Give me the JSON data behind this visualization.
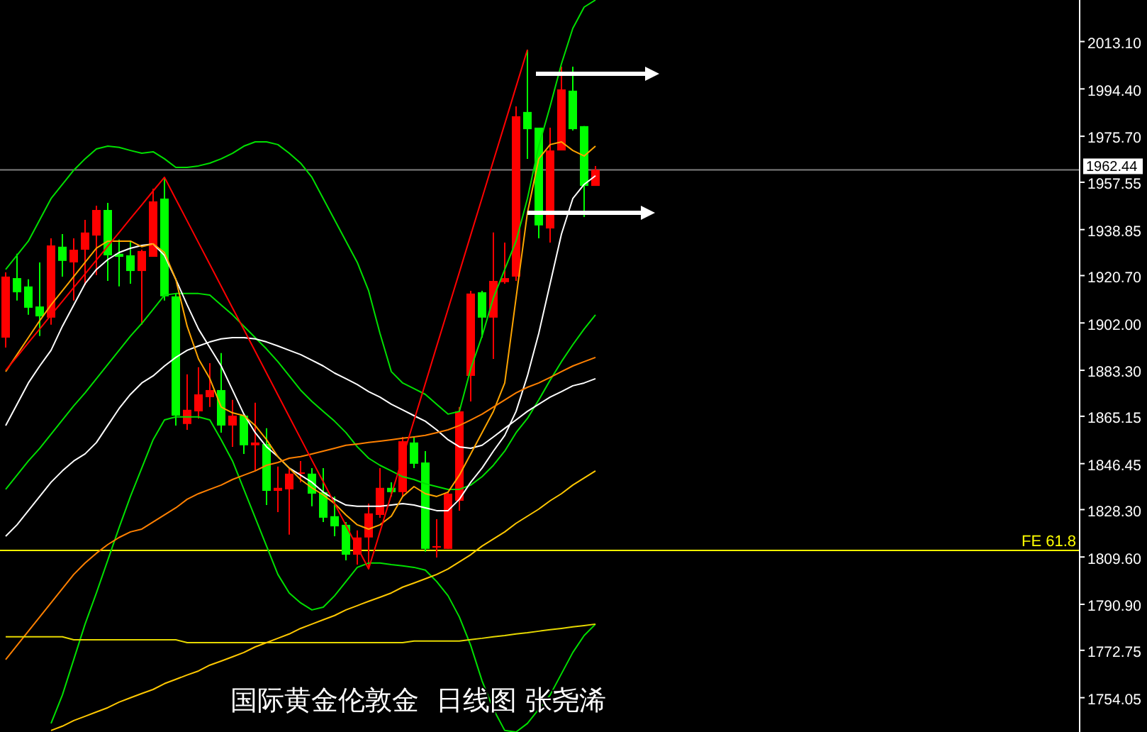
{
  "chart_data": {
    "type": "candlestick",
    "title": "国际黄金伦敦金  日线图 张尧浠",
    "categories": [
      null,
      null,
      null,
      null,
      null,
      null,
      null,
      null,
      null,
      null,
      null,
      null,
      null,
      null,
      null,
      null,
      null,
      null,
      null,
      null,
      null,
      null,
      null,
      null,
      null,
      null,
      null,
      null,
      null,
      null,
      null,
      null,
      null,
      null,
      null,
      null,
      null,
      null,
      null,
      null,
      null,
      null,
      null,
      null,
      null,
      null,
      null,
      null,
      null,
      null,
      null,
      null,
      null
    ],
    "ohlc": [
      [
        1896.2,
        1922.0,
        1892.3,
        1920.3
      ],
      [
        1919.7,
        1929.3,
        1910.8,
        1914.1
      ],
      [
        1916.4,
        1919.2,
        1905.2,
        1908.0
      ],
      [
        1908.5,
        1925.9,
        1896.8,
        1904.6
      ],
      [
        1904.1,
        1935.4,
        1901.3,
        1932.6
      ],
      [
        1932.1,
        1937.1,
        1920.3,
        1926.5
      ],
      [
        1925.9,
        1935.4,
        1910.8,
        1930.9
      ],
      [
        1930.9,
        1942.7,
        1916.9,
        1937.7
      ],
      [
        1936.5,
        1948.3,
        1920.9,
        1946.6
      ],
      [
        1946.6,
        1949.4,
        1918.6,
        1928.7
      ],
      [
        1929.3,
        1934.9,
        1916.4,
        1928.1
      ],
      [
        1928.7,
        1934.3,
        1917.5,
        1922.5
      ],
      [
        1922.5,
        1930.9,
        1901.3,
        1930.4
      ],
      [
        1928.1,
        1955.0,
        1928.1,
        1950.0
      ],
      [
        1951.1,
        1959.5,
        1910.8,
        1912.5
      ],
      [
        1912.5,
        1913.6,
        1861.5,
        1865.4
      ],
      [
        1862.1,
        1881.7,
        1859.8,
        1867.7
      ],
      [
        1867.1,
        1884.5,
        1864.3,
        1873.8
      ],
      [
        1872.7,
        1886.1,
        1868.8,
        1875.5
      ],
      [
        1875.5,
        1890.1,
        1858.7,
        1861.5
      ],
      [
        1861.5,
        1871.6,
        1853.1,
        1865.4
      ],
      [
        1865.4,
        1865.4,
        1850.3,
        1853.7
      ],
      [
        1853.7,
        1870.5,
        1843.6,
        1854.8
      ],
      [
        1854.2,
        1860.4,
        1830.1,
        1835.7
      ],
      [
        1835.7,
        1845.3,
        1827.3,
        1836.9
      ],
      [
        1836.3,
        1844.7,
        1818.4,
        1842.5
      ],
      [
        1842.5,
        1847.5,
        1839.1,
        1843.0
      ],
      [
        1842.5,
        1844.7,
        1829.6,
        1834.6
      ],
      [
        1835.2,
        1844.7,
        1823.4,
        1825.1
      ],
      [
        1825.7,
        1833.5,
        1817.8,
        1821.7
      ],
      [
        1822.3,
        1823.4,
        1808.3,
        1810.5
      ],
      [
        1810.5,
        1820.1,
        1806.6,
        1817.3
      ],
      [
        1817.3,
        1830.7,
        1804.9,
        1826.8
      ],
      [
        1826.2,
        1844.7,
        1825.1,
        1836.9
      ],
      [
        1836.9,
        1839.1,
        1833.5,
        1835.2
      ],
      [
        1835.2,
        1857.0,
        1833.5,
        1855.3
      ],
      [
        1854.8,
        1857.0,
        1844.7,
        1846.4
      ],
      [
        1846.9,
        1851.4,
        1811.7,
        1812.8
      ],
      [
        1813.3,
        1824.5,
        1809.4,
        1813.9
      ],
      [
        1812.8,
        1835.2,
        1812.8,
        1834.6
      ],
      [
        1831.8,
        1868.8,
        1827.9,
        1867.1
      ],
      [
        1881.1,
        1914.7,
        1871.0,
        1913.6
      ],
      [
        1914.1,
        1914.7,
        1896.2,
        1904.1
      ],
      [
        1904.1,
        1937.7,
        1887.8,
        1918.6
      ],
      [
        1918.1,
        1933.7,
        1917.5,
        1919.7
      ],
      [
        1920.3,
        1987.5,
        1918.6,
        1983.6
      ],
      [
        1985.3,
        2009.9,
        1966.8,
        1978.5
      ],
      [
        1979.1,
        1979.1,
        1935.4,
        1940.5
      ],
      [
        1939.3,
        1979.1,
        1933.7,
        1970.1
      ],
      [
        1970.1,
        2003.2,
        1970.1,
        1994.2
      ],
      [
        1993.7,
        2003.2,
        1978.0,
        1978.5
      ],
      [
        1979.7,
        1979.7,
        1943.8,
        1956.1
      ],
      [
        1956.1,
        1964.0,
        1956.1,
        1962.44
      ]
    ],
    "colors": [
      "#ff0000",
      "#00ff00",
      "#00ff00",
      "#00ff00",
      "#ff0000",
      "#00ff00",
      "#ff0000",
      "#ff0000",
      "#ff0000",
      "#00ff00",
      "#00ff00",
      "#00ff00",
      "#ff0000",
      "#ff0000",
      "#00ff00",
      "#00ff00",
      "#ff0000",
      "#ff0000",
      "#ff0000",
      "#00ff00",
      "#ff0000",
      "#00ff00",
      "#ff0000",
      "#00ff00",
      "#ff0000",
      "#ff0000",
      "#ff0000",
      "#00ff00",
      "#00ff00",
      "#00ff00",
      "#00ff00",
      "#ff0000",
      "#ff0000",
      "#ff0000",
      "#00ff00",
      "#ff0000",
      "#00ff00",
      "#00ff00",
      "#ff0000",
      "#ff0000",
      "#ff0000",
      "#ff0000",
      "#00ff00",
      "#ff0000",
      "#ff0000",
      "#ff0000",
      "#00ff00",
      "#00ff00",
      "#ff0000",
      "#ff0000",
      "#00ff00",
      "#00ff00",
      "#ff0000"
    ],
    "series": [
      {
        "type": "line",
        "color": "#00e000",
        "values": [
          1923.1,
          1928.7,
          1934.3,
          1942.7,
          1951.1,
          1956.7,
          1962.3,
          1966.8,
          1970.7,
          1971.8,
          1971.3,
          1970.1,
          1969.0,
          1969.6,
          1966.8,
          1963.4,
          1963.4,
          1964.0,
          1965.1,
          1966.8,
          1969.0,
          1971.8,
          1973.5,
          1973.5,
          1972.4,
          1969.0,
          1965.1,
          1959.5,
          1951.1,
          1942.7,
          1934.3,
          1925.9,
          1914.7,
          1897.9,
          1882.8,
          1878.3,
          1876.1,
          1873.8,
          1869.9,
          1866.0,
          1867.1,
          1883.9,
          1896.8,
          1911.9,
          1923.1,
          1934.3,
          1951.1,
          1971.8,
          1987.5,
          2004.3,
          2018.3,
          2026.7,
          2029.5
        ]
      },
      {
        "type": "line",
        "color": "#00e000",
        "values": [
          1836.3,
          1841.9,
          1847.5,
          1852.5,
          1858.1,
          1863.7,
          1869.3,
          1874.4,
          1880.0,
          1885.6,
          1891.2,
          1896.8,
          1901.8,
          1907.4,
          1913.0,
          1913.6,
          1913.6,
          1913.6,
          1913.0,
          1909.1,
          1905.2,
          1900.7,
          1896.2,
          1891.7,
          1886.7,
          1881.1,
          1875.5,
          1871.0,
          1867.1,
          1863.2,
          1858.7,
          1853.1,
          1848.6,
          1845.8,
          1843.6,
          1841.3,
          1840.2,
          1838.5,
          1837.4,
          1836.3,
          1836.3,
          1838.0,
          1841.3,
          1845.8,
          1851.4,
          1858.7,
          1864.3,
          1871.6,
          1879.4,
          1886.7,
          1893.4,
          1899.6,
          1905.2
        ]
      },
      {
        "type": "line",
        "color": "#00e000",
        "values": [
          null,
          null,
          null,
          null,
          1743.9,
          1755.1,
          1769.1,
          1783.1,
          1795.4,
          1808.3,
          1821.2,
          1833.5,
          1844.7,
          1855.9,
          1863.7,
          1864.9,
          1864.9,
          1864.9,
          1863.7,
          1855.9,
          1847.5,
          1836.3,
          1825.1,
          1813.9,
          1802.7,
          1795.4,
          1791.5,
          1788.7,
          1789.8,
          1794.3,
          1799.9,
          1805.5,
          1807.2,
          1807.2,
          1806.6,
          1806.1,
          1805.5,
          1804.4,
          1799.9,
          1794.3,
          1785.9,
          1774.7,
          1760.7,
          1749.5,
          1741.1,
          1740.5,
          1743.9,
          1749.5,
          1755.1,
          1763.5,
          1771.9,
          1778.6,
          1783.1
        ]
      },
      {
        "type": "line",
        "color": "#ffffff",
        "values": [
          1861.5,
          1869.9,
          1878.3,
          1885.0,
          1891.2,
          1900.7,
          1909.1,
          1917.5,
          1923.1,
          1927.0,
          1929.8,
          1931.5,
          1932.6,
          1933.2,
          1928.7,
          1919.2,
          1909.1,
          1899.6,
          1892.3,
          1885.0,
          1875.5,
          1866.0,
          1858.7,
          1853.1,
          1849.2,
          1844.7,
          1841.9,
          1839.1,
          1835.2,
          1832.4,
          1830.1,
          1829.6,
          1829.6,
          1829.6,
          1830.1,
          1830.7,
          1830.1,
          1829.0,
          1827.9,
          1827.9,
          1832.4,
          1839.1,
          1844.7,
          1851.4,
          1857.6,
          1867.1,
          1881.1,
          1897.9,
          1917.5,
          1937.1,
          1951.1,
          1956.7,
          1960.1
        ]
      },
      {
        "type": "line",
        "color": "#ffffff",
        "values": [
          1817.8,
          1822.3,
          1827.9,
          1833.5,
          1839.1,
          1843.6,
          1847.5,
          1850.3,
          1854.8,
          1861.5,
          1868.2,
          1873.8,
          1878.3,
          1881.1,
          1885.0,
          1888.4,
          1891.2,
          1892.9,
          1894.5,
          1895.7,
          1896.2,
          1896.2,
          1895.7,
          1894.5,
          1892.9,
          1891.2,
          1889.5,
          1887.3,
          1885.0,
          1882.2,
          1880.0,
          1877.7,
          1874.9,
          1872.7,
          1869.9,
          1867.7,
          1865.4,
          1863.2,
          1859.8,
          1855.9,
          1853.1,
          1852.5,
          1853.7,
          1857.0,
          1860.4,
          1863.7,
          1867.1,
          1869.9,
          1872.7,
          1874.9,
          1877.2,
          1878.3,
          1880.0
        ]
      },
      {
        "type": "line",
        "color": "#ffa500",
        "values": [
          1882.8,
          1889.5,
          1896.2,
          1902.9,
          1909.1,
          1914.7,
          1920.3,
          1925.9,
          1931.5,
          1934.3,
          1934.3,
          1934.3,
          1932.1,
          1933.2,
          1929.8,
          1919.2,
          1900.7,
          1887.8,
          1880.0,
          1868.8,
          1866.5,
          1865.4,
          1861.5,
          1855.9,
          1849.2,
          1844.7,
          1840.2,
          1836.9,
          1834.1,
          1830.7,
          1826.2,
          1822.3,
          1820.6,
          1822.3,
          1825.7,
          1833.5,
          1837.4,
          1834.6,
          1833.5,
          1835.2,
          1841.9,
          1850.3,
          1858.7,
          1867.1,
          1878.3,
          1911.9,
          1945.5,
          1966.8,
          1972.4,
          1973.5,
          1970.1,
          1967.9,
          1971.8
        ]
      },
      {
        "type": "line",
        "color": "#ff8000",
        "values": [
          1769.1,
          1774.7,
          1780.3,
          1785.9,
          1791.5,
          1797.1,
          1802.7,
          1807.2,
          1811.1,
          1814.5,
          1817.3,
          1819.5,
          1820.6,
          1823.4,
          1826.2,
          1829.0,
          1832.4,
          1834.6,
          1836.3,
          1838.0,
          1840.2,
          1841.9,
          1843.6,
          1845.8,
          1846.9,
          1848.6,
          1849.2,
          1850.3,
          1851.4,
          1852.5,
          1853.7,
          1854.2,
          1854.8,
          1855.3,
          1855.9,
          1856.5,
          1857.0,
          1857.6,
          1858.7,
          1859.8,
          1861.5,
          1863.7,
          1866.0,
          1868.8,
          1871.6,
          1874.4,
          1876.6,
          1878.3,
          1880.5,
          1882.8,
          1885.0,
          1886.7,
          1888.4
        ]
      },
      {
        "type": "line",
        "color": "#e6d800",
        "values": [
          1778.1,
          1778.1,
          1778.1,
          1778.1,
          1778.1,
          1778.1,
          1776.9,
          1776.9,
          1776.9,
          1776.9,
          1776.9,
          1776.9,
          1776.9,
          1776.9,
          1776.9,
          1776.9,
          1775.8,
          1775.8,
          1775.8,
          1775.8,
          1775.8,
          1775.8,
          1775.8,
          1775.8,
          1775.8,
          1775.8,
          1775.8,
          1775.8,
          1775.8,
          1775.8,
          1775.8,
          1775.8,
          1775.8,
          1775.8,
          1775.8,
          1775.8,
          1776.4,
          1776.4,
          1776.4,
          1776.4,
          1776.4,
          1777.0,
          1777.5,
          1778.1,
          1778.6,
          1779.2,
          1779.7,
          1780.3,
          1780.9,
          1781.4,
          1782.0,
          1782.5,
          1783.1
        ]
      },
      {
        "type": "line",
        "color": "#ffc800",
        "values": [
          null,
          null,
          null,
          null,
          1741.1,
          1742.8,
          1745.0,
          1746.7,
          1748.4,
          1750.1,
          1752.3,
          1754.0,
          1755.7,
          1757.3,
          1759.6,
          1761.3,
          1763.0,
          1764.6,
          1766.9,
          1768.5,
          1770.2,
          1771.9,
          1774.1,
          1775.8,
          1777.5,
          1779.2,
          1781.4,
          1783.1,
          1784.8,
          1786.5,
          1788.7,
          1790.4,
          1792.1,
          1793.7,
          1795.4,
          1797.7,
          1799.3,
          1801.0,
          1802.7,
          1804.9,
          1807.7,
          1810.5,
          1813.9,
          1816.7,
          1819.5,
          1822.9,
          1825.7,
          1828.5,
          1831.8,
          1834.6,
          1838.0,
          1840.8,
          1843.6
        ]
      },
      {
        "type": "line",
        "color": "#ff0000",
        "values": [
          1883.3,
          1888.7,
          1894.2,
          1899.6,
          1905.1,
          1910.5,
          1916.0,
          1921.4,
          1926.8,
          1932.3,
          1937.7,
          1943.2,
          1948.6,
          1954.1,
          1959.5,
          1950.9,
          1942.3,
          1933.7,
          1925.1,
          1916.5,
          1907.9,
          1899.4,
          1890.8,
          1882.2,
          1873.6,
          1865.0,
          1856.4,
          1847.8,
          1839.3,
          1830.7,
          1822.1,
          1813.5,
          1804.9,
          1819.5,
          1834.2,
          1848.8,
          1863.5,
          1878.1,
          1892.8,
          1907.4,
          1922.0,
          1936.7,
          1951.3,
          1966.0,
          1980.6,
          1995.3,
          2009.9,
          null,
          null,
          null,
          null,
          null,
          null
        ]
      }
    ],
    "ylim": [
      1740.5,
      2029.5
    ],
    "yticks": [
      {
        "value": 2013.1,
        "label": "2013.10"
      },
      {
        "value": 1994.4,
        "label": "1994.40"
      },
      {
        "value": 1975.7,
        "label": "1975.70"
      },
      {
        "value": 1957.55,
        "label": "1957.55"
      },
      {
        "value": 1938.85,
        "label": "1938.85"
      },
      {
        "value": 1920.7,
        "label": "1920.70"
      },
      {
        "value": 1902.0,
        "label": "1902.00"
      },
      {
        "value": 1883.3,
        "label": "1883.30"
      },
      {
        "value": 1865.15,
        "label": "1865.15"
      },
      {
        "value": 1846.45,
        "label": "1846.45"
      },
      {
        "value": 1828.3,
        "label": "1828.30"
      },
      {
        "value": 1809.6,
        "label": "1809.60"
      },
      {
        "value": 1790.9,
        "label": "1790.90"
      },
      {
        "value": 1772.75,
        "label": "1772.75"
      },
      {
        "value": 1754.05,
        "label": "1754.05"
      }
    ],
    "ref_lines": [
      {
        "axis": "y",
        "value": 1962.44,
        "label": "1962.44",
        "color": "#808080"
      },
      {
        "axis": "y",
        "value": 1812.2,
        "label": "FE 61.8",
        "color": "#ffff00"
      }
    ],
    "tick_labels": "y"
  }
}
